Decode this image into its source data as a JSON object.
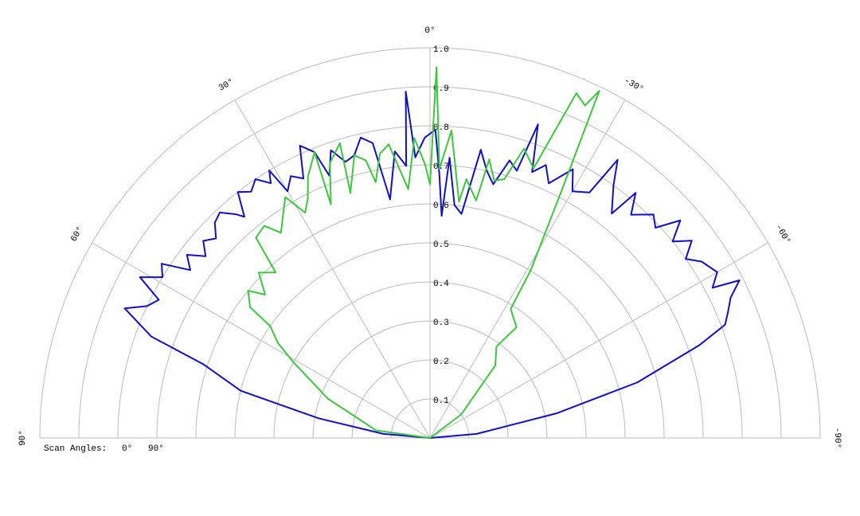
{
  "chart_data": {
    "type": "polar",
    "legend_title": "Scan Angles:",
    "rlim": [
      0,
      1
    ],
    "rticks": [
      0.1,
      0.2,
      0.3,
      0.4,
      0.5,
      0.6,
      0.7,
      0.8,
      0.9,
      {
        "value": 1,
        "label": "1.0"
      }
    ],
    "thetalim": [
      90,
      -90
    ],
    "thetaticks": [
      {
        "value": 90,
        "label": "90°"
      },
      {
        "value": 60,
        "label": "60°"
      },
      {
        "value": 30,
        "label": "30°"
      },
      {
        "value": 0,
        "label": "0°"
      },
      {
        "value": -30,
        "label": "-30°"
      },
      {
        "value": -60,
        "label": "-60°"
      },
      {
        "value": -90,
        "label": "-90°"
      }
    ],
    "grid": true,
    "series": [
      {
        "name": "0°",
        "color": "#1010c8",
        "x": [
          90,
          85,
          80,
          76,
          72,
          70,
          67,
          65,
          63,
          61,
          59,
          57,
          55,
          53,
          51,
          49,
          47,
          45,
          43,
          41,
          40,
          38,
          36,
          34,
          32,
          31,
          30,
          28,
          26,
          24,
          22,
          21,
          19,
          17,
          15,
          13,
          11,
          9.5,
          7,
          5,
          4,
          3,
          1,
          -1,
          -2,
          -3,
          -4,
          -6,
          -8,
          -10,
          -12,
          -14,
          -16,
          -18,
          -19,
          -21,
          -23,
          -25,
          -28,
          -30,
          -33,
          -34,
          -36,
          -39,
          -40,
          -42,
          -45,
          -47,
          -49,
          -51,
          -53,
          -55,
          -57,
          -60,
          -62,
          -63,
          -65,
          -67,
          -69,
          -71,
          -75,
          -79,
          -85,
          -90
        ],
        "values": [
          0,
          0.12,
          0.29,
          0.5,
          0.61,
          0.76,
          0.85,
          0.8,
          0.78,
          0.85,
          0.8,
          0.82,
          0.75,
          0.78,
          0.74,
          0.77,
          0.75,
          0.78,
          0.79,
          0.76,
          0.74,
          0.8,
          0.78,
          0.8,
          0.77,
          0.8,
          0.73,
          0.76,
          0.74,
          0.82,
          0.79,
          0.72,
          0.78,
          0.74,
          0.75,
          0.79,
          0.77,
          0.62,
          0.74,
          0.7,
          0.89,
          0.72,
          0.77,
          0.79,
          0.68,
          0.57,
          0.72,
          0.6,
          0.58,
          0.75,
          0.7,
          0.67,
          0.74,
          0.72,
          0.85,
          0.73,
          0.76,
          0.72,
          0.78,
          0.73,
          0.75,
          0.86,
          0.8,
          0.74,
          0.82,
          0.77,
          0.81,
          0.79,
          0.85,
          0.8,
          0.84,
          0.8,
          0.83,
          0.85,
          0.82,
          0.89,
          0.85,
          0.83,
          0.81,
          0.73,
          0.55,
          0.33,
          0.12,
          0
        ]
      },
      {
        "name": "90°",
        "color": "#3cc83c",
        "x": [
          90,
          82,
          74,
          69,
          61,
          58,
          55,
          54,
          51,
          49,
          46,
          43,
          41,
          38,
          36,
          33,
          31,
          29,
          27,
          25,
          22,
          23,
          20,
          17,
          18,
          15,
          13,
          12,
          10,
          8,
          5,
          3,
          1,
          0,
          -1,
          -2,
          -4,
          -7,
          -8,
          -11,
          -12,
          -14,
          -16,
          -18,
          -21,
          -23,
          -25,
          -26,
          -28,
          -31,
          -32,
          -38,
          -36,
          -42,
          -53,
          -90
        ],
        "values": [
          0,
          0.14,
          0.2,
          0.28,
          0.4,
          0.46,
          0.5,
          0.57,
          0.6,
          0.56,
          0.61,
          0.58,
          0.68,
          0.69,
          0.65,
          0.69,
          0.72,
          0.66,
          0.69,
          0.74,
          0.79,
          0.65,
          0.75,
          0.79,
          0.66,
          0.75,
          0.73,
          0.67,
          0.74,
          0.76,
          0.64,
          0.77,
          0.7,
          0.65,
          0.95,
          0.69,
          0.79,
          0.61,
          0.67,
          0.62,
          0.73,
          0.68,
          0.69,
          0.78,
          0.74,
          0.96,
          0.94,
          0.99,
          0.72,
          0.5,
          0.39,
          0.36,
          0.29,
          0.25,
          0.1,
          0
        ]
      }
    ]
  }
}
